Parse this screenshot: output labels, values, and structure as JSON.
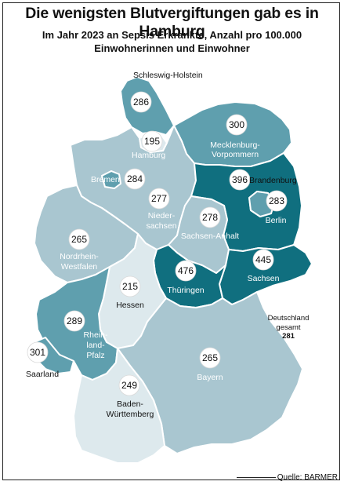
{
  "title": "Die wenigsten Blutvergiftungen gab es in Hamburg",
  "subtitle_line1": "Im Jahr 2023 an Sepsis Erkrankte, Anzahl pro 100.000",
  "subtitle_line2": "Einwohnerinnen und Einwohner",
  "national": {
    "label_line1": "Deutschland",
    "label_line2": "gesamt",
    "value": "281"
  },
  "source": "Quelle: BARMER",
  "colors": {
    "level_1": "#dde9ed",
    "level_2": "#a9c6d0",
    "level_3": "#5f9fae",
    "level_4": "#106f7f",
    "border": "#ffffff",
    "circle": "#ffffff"
  },
  "regions": [
    {
      "id": "schleswig-holstein",
      "name_lines": [
        "Schleswig-Holstein"
      ],
      "value": 286,
      "color": "#5f9fae"
    },
    {
      "id": "hamburg",
      "name_lines": [
        "Hamburg"
      ],
      "value": 195,
      "color": "#dde9ed"
    },
    {
      "id": "mecklenburg-vorpommern",
      "name_lines": [
        "Mecklenburg-",
        "Vorpommern"
      ],
      "value": 300,
      "color": "#5f9fae"
    },
    {
      "id": "bremen",
      "name_lines": [
        "Bremen"
      ],
      "value": 284,
      "color": "#5f9fae"
    },
    {
      "id": "niedersachsen",
      "name_lines": [
        "Nieder-",
        "sachsen"
      ],
      "value": 277,
      "color": "#a9c6d0"
    },
    {
      "id": "brandenburg",
      "name_lines": [
        "Brandenburg"
      ],
      "value": 396,
      "color": "#106f7f"
    },
    {
      "id": "berlin",
      "name_lines": [
        "Berlin"
      ],
      "value": 283,
      "color": "#5f9fae"
    },
    {
      "id": "sachsen-anhalt",
      "name_lines": [
        "Sachsen-Anhalt"
      ],
      "value": 278,
      "color": "#a9c6d0"
    },
    {
      "id": "nordrhein-westfalen",
      "name_lines": [
        "Nordrhein-",
        "Westfalen"
      ],
      "value": 265,
      "color": "#a9c6d0"
    },
    {
      "id": "sachsen",
      "name_lines": [
        "Sachsen"
      ],
      "value": 445,
      "color": "#106f7f"
    },
    {
      "id": "thueringen",
      "name_lines": [
        "Thüringen"
      ],
      "value": 476,
      "color": "#106f7f"
    },
    {
      "id": "hessen",
      "name_lines": [
        "Hessen"
      ],
      "value": 215,
      "color": "#dde9ed"
    },
    {
      "id": "rheinland-pfalz",
      "name_lines": [
        "Rhein-",
        "land-",
        "Pfalz"
      ],
      "value": 289,
      "color": "#5f9fae"
    },
    {
      "id": "saarland",
      "name_lines": [
        "Saarland"
      ],
      "value": 301,
      "color": "#5f9fae"
    },
    {
      "id": "bayern",
      "name_lines": [
        "Bayern"
      ],
      "value": 265,
      "color": "#a9c6d0"
    },
    {
      "id": "baden-wuerttemberg",
      "name_lines": [
        "Baden-",
        "Württemberg"
      ],
      "value": 249,
      "color": "#dde9ed"
    }
  ]
}
